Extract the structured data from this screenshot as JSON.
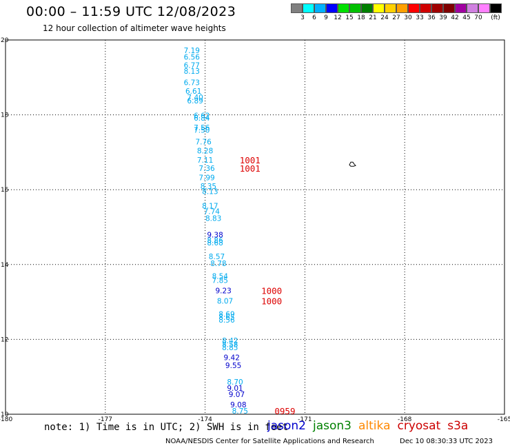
{
  "header": {
    "title": "00:00 – 11:59 UTC 12/08/2023",
    "subtitle": "12 hour collection of altimeter wave heights"
  },
  "color_scale": {
    "bins": [
      {
        "label": "",
        "color": "#808080"
      },
      {
        "label": "3",
        "color": "#00ffff"
      },
      {
        "label": "6",
        "color": "#00b0ff"
      },
      {
        "label": "9",
        "color": "#0000ff"
      },
      {
        "label": "12",
        "color": "#00e000"
      },
      {
        "label": "15",
        "color": "#00c000"
      },
      {
        "label": "18",
        "color": "#008000"
      },
      {
        "label": "21",
        "color": "#ffff00"
      },
      {
        "label": "24",
        "color": "#ffd000"
      },
      {
        "label": "27",
        "color": "#ffa000"
      },
      {
        "label": "30",
        "color": "#ff0000"
      },
      {
        "label": "33",
        "color": "#d00000"
      },
      {
        "label": "36",
        "color": "#a00000"
      },
      {
        "label": "39",
        "color": "#800000"
      },
      {
        "label": "42",
        "color": "#a000a0"
      },
      {
        "label": "45",
        "color": "#d080e0"
      },
      {
        "label": "70",
        "color": "#ff80ff"
      },
      {
        "label": "(ft)",
        "color": "#000000"
      }
    ]
  },
  "note": "note: 1) Time is in UTC; 2) SWH is in feet",
  "legend": [
    {
      "label": "jason2",
      "color": "#0000cc"
    },
    {
      "label": "jason3",
      "color": "#008000"
    },
    {
      "label": "altika",
      "color": "#ff8800"
    },
    {
      "label": "cryosat",
      "color": "#cc0000"
    },
    {
      "label": "s3a",
      "color": "#cc0000"
    }
  ],
  "footer": {
    "left": "NOAA/NESDIS Center for Satellite Applications and Research",
    "right": "Dec 10 08:30:33 UTC 2023"
  },
  "chart_data": {
    "type": "scatter",
    "x_ticks": [
      "-180",
      "-177",
      "-174",
      "-171",
      "-168",
      "-165"
    ],
    "y_ticks": [
      "10",
      "12",
      "14",
      "16",
      "18",
      "20"
    ],
    "xlim": [
      -180,
      -165
    ],
    "ylim": [
      10,
      20
    ],
    "grid": true,
    "points": [
      {
        "lon": -174.4,
        "lat": 19.72,
        "text": "7.19",
        "color": "#00aaee"
      },
      {
        "lon": -174.4,
        "lat": 19.55,
        "text": "6.56",
        "color": "#00aaee"
      },
      {
        "lon": -174.4,
        "lat": 19.33,
        "text": "6.77",
        "color": "#00aaee"
      },
      {
        "lon": -174.4,
        "lat": 19.17,
        "text": "8.13",
        "color": "#00aaee"
      },
      {
        "lon": -174.4,
        "lat": 18.87,
        "text": "6.73",
        "color": "#00aaee"
      },
      {
        "lon": -174.35,
        "lat": 18.64,
        "text": "6.61",
        "color": "#00aaee"
      },
      {
        "lon": -174.3,
        "lat": 18.47,
        "text": "7.40",
        "color": "#00aaee"
      },
      {
        "lon": -174.3,
        "lat": 18.38,
        "text": "6.89",
        "color": "#00aaee"
      },
      {
        "lon": -174.1,
        "lat": 17.98,
        "text": "6.62",
        "color": "#00aaee"
      },
      {
        "lon": -174.1,
        "lat": 17.92,
        "text": "6.84",
        "color": "#00aaee"
      },
      {
        "lon": -174.1,
        "lat": 17.66,
        "text": "7.56",
        "color": "#00aaee"
      },
      {
        "lon": -174.1,
        "lat": 17.6,
        "text": "7.50",
        "color": "#00aaee"
      },
      {
        "lon": -174.05,
        "lat": 17.28,
        "text": "7.76",
        "color": "#00aaee"
      },
      {
        "lon": -174.0,
        "lat": 17.04,
        "text": "8.28",
        "color": "#00aaee"
      },
      {
        "lon": -174.0,
        "lat": 16.8,
        "text": "7.11",
        "color": "#00aaee"
      },
      {
        "lon": -173.95,
        "lat": 16.57,
        "text": "7.36",
        "color": "#00aaee"
      },
      {
        "lon": -173.95,
        "lat": 16.33,
        "text": "7.99",
        "color": "#00aaee"
      },
      {
        "lon": -173.9,
        "lat": 16.1,
        "text": "8.35",
        "color": "#00aaee"
      },
      {
        "lon": -173.85,
        "lat": 15.96,
        "text": "8.13",
        "color": "#00aaee"
      },
      {
        "lon": -173.85,
        "lat": 15.57,
        "text": "8.17",
        "color": "#00aaee"
      },
      {
        "lon": -173.8,
        "lat": 15.42,
        "text": "7.74",
        "color": "#00aaee"
      },
      {
        "lon": -173.75,
        "lat": 15.24,
        "text": "8.83",
        "color": "#00aaee"
      },
      {
        "lon": -173.7,
        "lat": 14.8,
        "text": "9.38",
        "color": "#0000cc"
      },
      {
        "lon": -173.7,
        "lat": 14.65,
        "text": "8.86",
        "color": "#00aaee"
      },
      {
        "lon": -173.7,
        "lat": 14.59,
        "text": "8.68",
        "color": "#00aaee"
      },
      {
        "lon": -173.65,
        "lat": 14.22,
        "text": "8.57",
        "color": "#00aaee"
      },
      {
        "lon": -173.6,
        "lat": 14.03,
        "text": "8.78",
        "color": "#00aaee"
      },
      {
        "lon": -173.55,
        "lat": 13.69,
        "text": "8.54",
        "color": "#00aaee"
      },
      {
        "lon": -173.55,
        "lat": 13.58,
        "text": "7.85",
        "color": "#00aaee"
      },
      {
        "lon": -173.45,
        "lat": 13.31,
        "text": "9.23",
        "color": "#0000cc"
      },
      {
        "lon": -173.4,
        "lat": 13.03,
        "text": "8.07",
        "color": "#00aaee"
      },
      {
        "lon": -173.35,
        "lat": 12.68,
        "text": "8.69",
        "color": "#00aaee"
      },
      {
        "lon": -173.35,
        "lat": 12.6,
        "text": "8.65",
        "color": "#00aaee"
      },
      {
        "lon": -173.35,
        "lat": 12.52,
        "text": "8.56",
        "color": "#00aaee"
      },
      {
        "lon": -173.25,
        "lat": 11.97,
        "text": "8.42",
        "color": "#00aaee"
      },
      {
        "lon": -173.25,
        "lat": 11.87,
        "text": "8.58",
        "color": "#00aaee"
      },
      {
        "lon": -173.25,
        "lat": 11.79,
        "text": "8.85",
        "color": "#00aaee"
      },
      {
        "lon": -173.2,
        "lat": 11.52,
        "text": "9.42",
        "color": "#0000cc"
      },
      {
        "lon": -173.15,
        "lat": 11.31,
        "text": "9.55",
        "color": "#0000cc"
      },
      {
        "lon": -173.1,
        "lat": 10.87,
        "text": "8.70",
        "color": "#00aaee"
      },
      {
        "lon": -173.1,
        "lat": 10.7,
        "text": "9.01",
        "color": "#0000cc"
      },
      {
        "lon": -173.05,
        "lat": 10.53,
        "text": "9.07",
        "color": "#0000cc"
      },
      {
        "lon": -173.0,
        "lat": 10.26,
        "text": "9.08",
        "color": "#0000cc"
      },
      {
        "lon": -172.95,
        "lat": 10.09,
        "text": "8.75",
        "color": "#00aaee"
      }
    ],
    "time_labels": [
      {
        "lon": -172.65,
        "lat": 16.8,
        "text": "1001",
        "color": "#dd0000"
      },
      {
        "lon": -172.65,
        "lat": 16.57,
        "text": "1001",
        "color": "#dd0000"
      },
      {
        "lon": -172.0,
        "lat": 13.31,
        "text": "1000",
        "color": "#dd0000"
      },
      {
        "lon": -172.0,
        "lat": 13.03,
        "text": "1000",
        "color": "#dd0000"
      },
      {
        "lon": -171.6,
        "lat": 10.09,
        "text": "0959",
        "color": "#dd0000"
      }
    ],
    "island": {
      "lon": -169.6,
      "lat": 16.7
    }
  }
}
